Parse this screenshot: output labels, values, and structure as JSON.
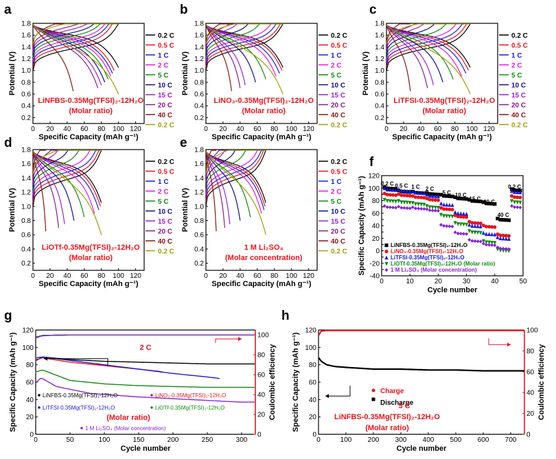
{
  "panel_letters": [
    "a",
    "b",
    "c",
    "d",
    "e",
    "f",
    "g",
    "h"
  ],
  "rate_labels": [
    "0.2 C",
    "0.5 C",
    "1 C",
    "2 C",
    "5 C",
    "10 C",
    "15 C",
    "20 C",
    "40 C",
    "0.2 C"
  ],
  "rate_colors": [
    "#000000",
    "#e8141b",
    "#1a1adb",
    "#e317e3",
    "#128a12",
    "#0d0d8a",
    "#9b20d6",
    "#8a1a8a",
    "#8a1414",
    "#9e9e0a"
  ],
  "common_axis": {
    "ylabel": "Potential (V)",
    "xlabel": "Specific Capacity (mAh g⁻¹)",
    "y_ticks": [
      "0.2",
      "0.4",
      "0.6",
      "0.8",
      "1.0",
      "1.2",
      "1.4",
      "1.6",
      "1.8"
    ],
    "x_ticks": [
      "0",
      "20",
      "40",
      "60",
      "80",
      "100",
      "120"
    ]
  },
  "chart_data": [
    {
      "panel": "a",
      "type": "line",
      "electrolyte": "LiNFBS-0.35Mg(TFSI)₂-12H₂O",
      "note": "(Molar ratio)",
      "xlim": [
        0,
        130
      ],
      "ylim": [
        0.1,
        1.8
      ],
      "rates": [
        "0.2 C",
        "0.5 C",
        "1 C",
        "2 C",
        "5 C",
        "10 C",
        "15 C",
        "20 C",
        "40 C",
        "0.2 C"
      ],
      "capacities": [
        100,
        95,
        93,
        91,
        88,
        84,
        80,
        76,
        47,
        100
      ]
    },
    {
      "panel": "b",
      "type": "line",
      "electrolyte": "LiNO₃-0.35Mg(TFSI)₂-12H₂O",
      "note": "(Molar ratio)",
      "xlim": [
        0,
        130
      ],
      "ylim": [
        0.1,
        1.8
      ],
      "rates": [
        "0.2 C",
        "0.5 C",
        "1 C",
        "2 C",
        "5 C",
        "10 C",
        "15 C",
        "20 C",
        "40 C",
        "0.2 C"
      ],
      "capacities": [
        90,
        89,
        86,
        82,
        70,
        58,
        46,
        40,
        30,
        90
      ]
    },
    {
      "panel": "c",
      "type": "line",
      "electrolyte": "LiTFSI-0.35Mg(TFSI)₂-12H₂O",
      "note": "(Molar ratio)",
      "xlim": [
        0,
        130
      ],
      "ylim": [
        0.1,
        1.8
      ],
      "rates": [
        "0.2 C",
        "0.5 C",
        "1 C",
        "2 C",
        "5 C",
        "10 C",
        "15 C",
        "20 C",
        "40 C",
        "0.2 C"
      ],
      "capacities": [
        98,
        96,
        93,
        88,
        78,
        66,
        55,
        48,
        28,
        98
      ]
    },
    {
      "panel": "d",
      "type": "line",
      "electrolyte": "LiOTf-0.35Mg(TFSI)₂-12H₂O",
      "note": "(Molar ratio)",
      "xlim": [
        0,
        130
      ],
      "ylim": [
        0.1,
        1.8
      ],
      "rates": [
        "0.2 C",
        "0.5 C",
        "1 C",
        "2 C",
        "5 C",
        "10 C",
        "15 C",
        "20 C",
        "40 C",
        "0.2 C"
      ],
      "capacities": [
        80,
        79,
        77,
        72,
        60,
        48,
        37,
        30,
        15,
        80
      ]
    },
    {
      "panel": "e",
      "type": "line",
      "electrolyte": "1 M Li₂SO₄",
      "note": "(Molar concentration)",
      "xlim": [
        0,
        130
      ],
      "ylim": [
        0.1,
        1.8
      ],
      "rates": [
        "0.2 C",
        "0.5 C",
        "1 C",
        "2 C",
        "5 C",
        "10 C",
        "15 C",
        "20 C",
        "40 C",
        "0.2 C"
      ],
      "capacities": [
        70,
        69,
        68,
        65,
        52,
        40,
        28,
        22,
        12,
        70
      ]
    },
    {
      "panel": "f",
      "type": "scatter",
      "xlabel": "Cycle number",
      "ylabel": "Specific Capacity (mAh g⁻¹)",
      "xlim": [
        0,
        50
      ],
      "ylim": [
        -40,
        120
      ],
      "x_ticks": [
        "0",
        "10",
        "20",
        "30",
        "40",
        "50"
      ],
      "y_ticks": [
        "-40",
        "-30",
        "-20",
        "-10",
        "0",
        "10",
        "20",
        "30",
        "40",
        "50",
        "60",
        "70",
        "80",
        "90",
        "100",
        "110",
        "120"
      ],
      "rate_labels": [
        "0.2 C",
        "0.5 C",
        "1 C",
        "2 C",
        "5 C",
        "10 C",
        "15 C",
        "20 C",
        "40 C",
        "0.2 C"
      ],
      "series": [
        {
          "name": "LiNFBS-0.35Mg(TFSI)₂-12H₂O",
          "color": "#000000",
          "marker": "square",
          "values": [
            100,
            95,
            93,
            91,
            88,
            84,
            80,
            76,
            50,
            97
          ]
        },
        {
          "name": "LiNO₃-0.35Mg(TFSI)₂-12H₂O",
          "color": "#e8141b",
          "marker": "circle",
          "values": [
            90,
            89,
            86,
            82,
            67,
            55,
            45,
            39,
            25,
            86
          ]
        },
        {
          "name": "LiTFSI-0.35Mg(TFSI)₂-12H₂O",
          "color": "#1a1adb",
          "marker": "triangle-up",
          "values": [
            98,
            96,
            93,
            88,
            74,
            60,
            40,
            27,
            20,
            94
          ]
        },
        {
          "name": "LiOTf-0.35Mg(TFSI)₂-12H₂O (Molar ratio)",
          "color": "#128a12",
          "marker": "triangle-down",
          "values": [
            80,
            78,
            75,
            70,
            56,
            43,
            30,
            14,
            1,
            78
          ]
        },
        {
          "name": "1 M Li₂SO₄ (Molar concentration)",
          "color": "#8a22d6",
          "marker": "diamond",
          "values": [
            70,
            69,
            68,
            65,
            40,
            28,
            16,
            10,
            4,
            70
          ]
        }
      ]
    },
    {
      "panel": "g",
      "type": "scatter",
      "xlabel": "Cycle number",
      "ylabel": "Specific Capacity (mAh g⁻¹)",
      "y2label": "Coulombic efficiency",
      "xlim": [
        0,
        320
      ],
      "ylim": [
        0,
        120
      ],
      "y2lim": [
        0,
        105
      ],
      "x_ticks": [
        "0",
        "50",
        "100",
        "150",
        "200",
        "250",
        "300"
      ],
      "y_ticks": [
        "0",
        "20",
        "40",
        "60",
        "80",
        "100",
        "120"
      ],
      "y2_ticks": [
        "0",
        "20",
        "40",
        "60",
        "80",
        "100"
      ],
      "annotation": "2 C",
      "note": "(Molar ratio)",
      "series": [
        {
          "name": "LiNFBS-0.35Mg(TFSI)₂-12H₂O",
          "color": "#000000",
          "cycles": [
            1,
            10,
            50,
            100,
            150,
            200,
            250,
            300,
            320
          ],
          "capacity": [
            85,
            89,
            86,
            84,
            83,
            82,
            81,
            81,
            81
          ],
          "ce": [
            98,
            99.5,
            100,
            100,
            100,
            100,
            100,
            100,
            100
          ]
        },
        {
          "name": "LiNO₃-0.35Mg(TFSI)₂-12H₂O",
          "color": "#e8141b",
          "cycles": [
            1,
            10,
            50,
            100,
            150,
            185
          ],
          "capacity": [
            86,
            88,
            83,
            79,
            75,
            72
          ],
          "ce": [
            98,
            99.5,
            100,
            100,
            100,
            100
          ]
        },
        {
          "name": "LiTFSI-0.35Mg(TFSI)₂-12H₂O",
          "color": "#1a1adb",
          "cycles": [
            1,
            10,
            50,
            100,
            150,
            200,
            250,
            270
          ],
          "capacity": [
            88,
            89,
            85,
            80,
            75,
            70,
            66,
            64
          ],
          "ce": [
            98,
            99.5,
            100,
            100,
            100,
            100,
            100,
            100
          ]
        },
        {
          "name": "LiOTf-0.35Mg(TFSI)₂-12H₂O",
          "color": "#128a12",
          "cycles": [
            1,
            10,
            50,
            100,
            150,
            200,
            250,
            300,
            320
          ],
          "capacity": [
            72,
            74,
            62,
            58,
            56,
            55,
            54,
            54,
            54
          ],
          "ce": [
            98,
            99.5,
            100,
            100,
            100,
            100,
            100,
            100,
            100
          ]
        },
        {
          "name": "1 M Li₂SO₄ (Molar concentration)",
          "color": "#8a22d6",
          "cycles": [
            1,
            8,
            30,
            80,
            150,
            200,
            250,
            300,
            320
          ],
          "capacity": [
            60,
            65,
            55,
            47,
            43,
            41,
            39,
            37,
            37
          ],
          "ce": [
            97,
            99,
            100,
            100,
            100,
            100,
            100,
            100,
            100
          ]
        }
      ]
    },
    {
      "panel": "h",
      "type": "scatter",
      "xlabel": "Cycle number",
      "ylabel": "Specific Capacity (mAh g⁻¹)",
      "y2label": "Coulombic efficiency",
      "xlim": [
        0,
        750
      ],
      "ylim": [
        0,
        120
      ],
      "y2lim": [
        0,
        100
      ],
      "x_ticks": [
        "0",
        "100",
        "200",
        "300",
        "400",
        "500",
        "600",
        "700"
      ],
      "y_ticks": [
        "0",
        "20",
        "40",
        "60",
        "80",
        "100",
        "120"
      ],
      "y2_ticks": [
        "0",
        "20",
        "40",
        "60",
        "80",
        "100"
      ],
      "annotation": "5 C",
      "electrolyte": "LiNFBS-0.35Mg(TFSI)₂-12H₂O",
      "note": "(Molar ratio)",
      "series": [
        {
          "name": "Charge",
          "color": "#e8141b",
          "marker": "circle"
        },
        {
          "name": "Discharge",
          "color": "#000000",
          "marker": "square"
        }
      ],
      "cycles": [
        1,
        10,
        30,
        60,
        100,
        150,
        200,
        300,
        400,
        500,
        600,
        700,
        750
      ],
      "discharge": [
        88,
        84,
        80,
        78,
        77,
        76,
        75,
        75,
        74,
        74,
        73,
        73,
        73
      ],
      "ce": [
        95,
        99,
        99.5,
        99.5,
        99.5,
        99.5,
        99.5,
        99.5,
        99.5,
        99.5,
        99.5,
        99.5,
        99.5
      ]
    }
  ]
}
